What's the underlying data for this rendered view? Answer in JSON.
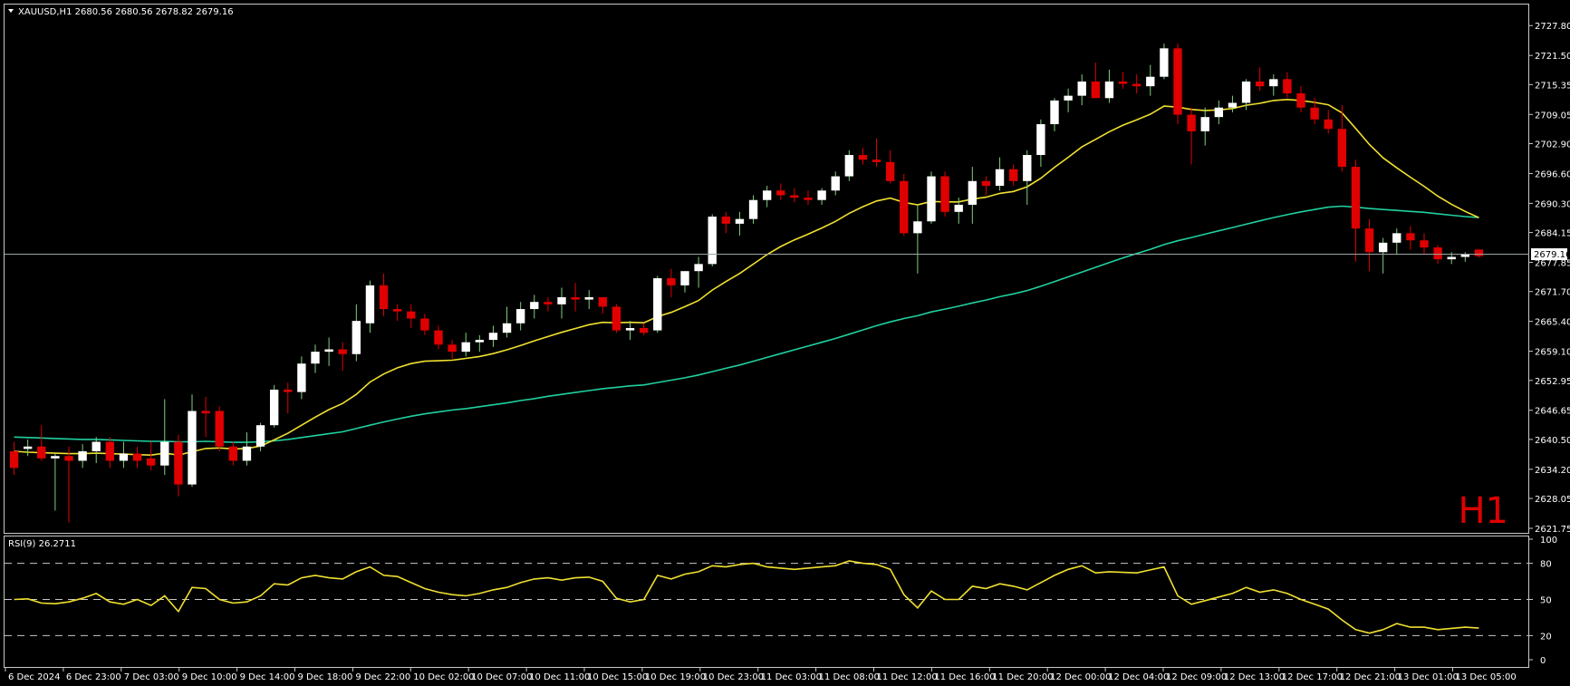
{
  "header": {
    "symbol_line": "XAUUSD,H1  2680.56 2680.56 2678.82 2679.16",
    "menu_icon": "triangle-down-icon"
  },
  "timeframe_watermark": "H1",
  "rsi_panel": {
    "label": "RSI(9) 26.2711",
    "levels": [
      "100",
      "80",
      "50",
      "20",
      "0"
    ]
  },
  "price_axis": {
    "labels": [
      "2727.80",
      "2721.50",
      "2715.35",
      "2709.05",
      "2702.90",
      "2696.60",
      "2690.30",
      "2684.15",
      "2677.85",
      "2671.70",
      "2665.40",
      "2659.10",
      "2652.95",
      "2646.65",
      "2640.50",
      "2634.20",
      "2628.05",
      "2621.75"
    ],
    "current_price_label": "2679.16"
  },
  "time_axis": {
    "labels": [
      "6 Dec 2024",
      "6 Dec 23:00",
      "7 Dec 03:00",
      "9 Dec 10:00",
      "9 Dec 14:00",
      "9 Dec 18:00",
      "9 Dec 22:00",
      "10 Dec 02:00",
      "10 Dec 07:00",
      "10 Dec 11:00",
      "10 Dec 15:00",
      "10 Dec 19:00",
      "10 Dec 23:00",
      "11 Dec 03:00",
      "11 Dec 08:00",
      "11 Dec 12:00",
      "11 Dec 16:00",
      "11 Dec 20:00",
      "12 Dec 00:00",
      "12 Dec 04:00",
      "12 Dec 09:00",
      "12 Dec 13:00",
      "12 Dec 17:00",
      "12 Dec 21:00",
      "13 Dec 01:00",
      "13 Dec 05:00"
    ]
  },
  "colors": {
    "background": "#000000",
    "bull_candle": "#ffffff",
    "bear_candle": "#e00000",
    "ma_fast": "#f0e030",
    "ma_slow": "#20d0a0",
    "rsi_line": "#f0e030",
    "frame": "#c8c8c8",
    "price_line": "#9aa4a4",
    "watermark": "#e00000"
  },
  "chart_data": {
    "type": "candlestick",
    "ylim": [
      2621.75,
      2730.9
    ],
    "candles": [
      [
        2638.0,
        2640.0,
        2633.0,
        2634.5
      ],
      [
        2638.5,
        2640.5,
        2637.0,
        2639.0
      ],
      [
        2639.0,
        2643.5,
        2636.0,
        2636.5
      ],
      [
        2636.5,
        2637.5,
        2625.5,
        2637.0
      ],
      [
        2637.0,
        2639.0,
        2623.0,
        2636.0
      ],
      [
        2636.0,
        2639.5,
        2634.5,
        2638.0
      ],
      [
        2638.0,
        2641.0,
        2635.5,
        2640.0
      ],
      [
        2640.0,
        2641.0,
        2634.5,
        2636.0
      ],
      [
        2636.0,
        2640.0,
        2634.5,
        2637.5
      ],
      [
        2637.5,
        2639.0,
        2634.5,
        2636.0
      ],
      [
        2636.5,
        2640.0,
        2634.0,
        2635.0
      ],
      [
        2635.0,
        2649.0,
        2633.0,
        2640.0
      ],
      [
        2640.0,
        2641.5,
        2628.5,
        2631.0
      ],
      [
        2631.0,
        2650.0,
        2630.5,
        2646.5
      ],
      [
        2646.5,
        2649.5,
        2641.0,
        2646.0
      ],
      [
        2646.5,
        2647.5,
        2638.0,
        2639.0
      ],
      [
        2639.0,
        2640.0,
        2635.0,
        2636.0
      ],
      [
        2636.0,
        2642.0,
        2635.0,
        2639.0
      ],
      [
        2639.0,
        2644.0,
        2638.0,
        2643.5
      ],
      [
        2643.5,
        2652.0,
        2643.0,
        2651.0
      ],
      [
        2651.0,
        2652.5,
        2646.0,
        2650.5
      ],
      [
        2650.5,
        2658.0,
        2649.0,
        2656.5
      ],
      [
        2656.5,
        2660.5,
        2654.5,
        2659.0
      ],
      [
        2659.0,
        2662.0,
        2656.0,
        2659.5
      ],
      [
        2659.5,
        2661.0,
        2655.0,
        2658.5
      ],
      [
        2658.5,
        2669.0,
        2657.0,
        2665.5
      ],
      [
        2665.0,
        2674.0,
        2663.0,
        2673.0
      ],
      [
        2673.0,
        2675.5,
        2666.5,
        2668.0
      ],
      [
        2668.0,
        2669.0,
        2665.5,
        2667.5
      ],
      [
        2667.5,
        2669.0,
        2664.0,
        2666.0
      ],
      [
        2666.0,
        2667.0,
        2662.5,
        2663.5
      ],
      [
        2663.5,
        2664.5,
        2659.5,
        2660.5
      ],
      [
        2660.5,
        2661.5,
        2657.5,
        2659.0
      ],
      [
        2659.0,
        2663.0,
        2658.0,
        2661.0
      ],
      [
        2661.0,
        2662.5,
        2659.0,
        2661.5
      ],
      [
        2661.5,
        2664.5,
        2660.0,
        2663.0
      ],
      [
        2663.0,
        2668.5,
        2662.0,
        2665.0
      ],
      [
        2665.0,
        2669.5,
        2663.5,
        2668.0
      ],
      [
        2668.0,
        2671.0,
        2666.0,
        2669.5
      ],
      [
        2669.5,
        2670.5,
        2667.5,
        2669.0
      ],
      [
        2669.0,
        2672.5,
        2666.0,
        2670.5
      ],
      [
        2670.5,
        2673.5,
        2667.5,
        2670.0
      ],
      [
        2670.0,
        2672.0,
        2668.0,
        2670.5
      ],
      [
        2670.5,
        2670.5,
        2667.0,
        2668.5
      ],
      [
        2668.5,
        2669.0,
        2663.0,
        2663.5
      ],
      [
        2663.5,
        2665.5,
        2661.5,
        2664.0
      ],
      [
        2664.0,
        2665.0,
        2662.5,
        2663.0
      ],
      [
        2663.5,
        2675.0,
        2663.0,
        2674.5
      ],
      [
        2674.5,
        2676.5,
        2670.5,
        2673.0
      ],
      [
        2673.0,
        2676.0,
        2671.5,
        2676.0
      ],
      [
        2676.0,
        2679.0,
        2672.5,
        2677.5
      ],
      [
        2677.5,
        2688.0,
        2677.0,
        2687.5
      ],
      [
        2687.5,
        2688.5,
        2684.0,
        2686.0
      ],
      [
        2686.0,
        2688.5,
        2683.5,
        2687.0
      ],
      [
        2687.0,
        2692.0,
        2686.0,
        2691.0
      ],
      [
        2691.0,
        2694.0,
        2689.5,
        2693.0
      ],
      [
        2693.0,
        2694.5,
        2691.0,
        2692.0
      ],
      [
        2692.0,
        2693.5,
        2690.5,
        2691.5
      ],
      [
        2691.5,
        2693.0,
        2690.0,
        2691.0
      ],
      [
        2691.0,
        2693.5,
        2690.0,
        2693.0
      ],
      [
        2693.0,
        2697.0,
        2692.0,
        2696.0
      ],
      [
        2696.0,
        2701.5,
        2695.0,
        2700.5
      ],
      [
        2700.5,
        2702.0,
        2698.5,
        2699.5
      ],
      [
        2699.5,
        2704.0,
        2698.0,
        2699.0
      ],
      [
        2699.0,
        2701.5,
        2694.5,
        2695.0
      ],
      [
        2695.0,
        2696.5,
        2683.5,
        2684.0
      ],
      [
        2684.0,
        2690.0,
        2675.5,
        2686.5
      ],
      [
        2686.5,
        2697.0,
        2686.0,
        2696.0
      ],
      [
        2696.0,
        2697.0,
        2687.5,
        2688.5
      ],
      [
        2688.5,
        2691.5,
        2686.0,
        2690.0
      ],
      [
        2690.0,
        2698.0,
        2686.0,
        2695.0
      ],
      [
        2695.0,
        2696.0,
        2692.0,
        2694.0
      ],
      [
        2694.0,
        2700.0,
        2693.0,
        2697.5
      ],
      [
        2697.5,
        2698.5,
        2694.0,
        2695.0
      ],
      [
        2695.0,
        2701.5,
        2690.0,
        2700.5
      ],
      [
        2700.5,
        2708.0,
        2698.0,
        2707.0
      ],
      [
        2707.0,
        2712.5,
        2705.5,
        2712.0
      ],
      [
        2712.0,
        2714.5,
        2709.5,
        2713.0
      ],
      [
        2713.0,
        2717.5,
        2711.0,
        2716.0
      ],
      [
        2716.0,
        2720.0,
        2713.5,
        2712.5
      ],
      [
        2712.5,
        2718.5,
        2711.5,
        2716.0
      ],
      [
        2716.0,
        2718.0,
        2714.5,
        2715.5
      ],
      [
        2715.5,
        2717.5,
        2713.5,
        2715.0
      ],
      [
        2715.0,
        2719.5,
        2713.0,
        2717.0
      ],
      [
        2717.0,
        2724.0,
        2716.5,
        2723.0
      ],
      [
        2723.0,
        2724.0,
        2707.0,
        2709.0
      ],
      [
        2709.0,
        2710.5,
        2698.5,
        2705.5
      ],
      [
        2705.5,
        2710.5,
        2702.5,
        2708.5
      ],
      [
        2708.5,
        2712.0,
        2707.0,
        2710.5
      ],
      [
        2710.5,
        2713.0,
        2709.5,
        2711.5
      ],
      [
        2711.5,
        2716.5,
        2710.0,
        2716.0
      ],
      [
        2716.0,
        2719.0,
        2714.0,
        2715.0
      ],
      [
        2715.0,
        2717.5,
        2713.0,
        2716.5
      ],
      [
        2716.5,
        2718.0,
        2712.5,
        2713.5
      ],
      [
        2713.5,
        2715.0,
        2709.5,
        2710.5
      ],
      [
        2710.5,
        2712.5,
        2707.0,
        2708.0
      ],
      [
        2708.0,
        2710.0,
        2705.0,
        2706.0
      ],
      [
        2706.0,
        2711.0,
        2697.0,
        2698.0
      ],
      [
        2698.0,
        2699.5,
        2678.0,
        2685.0
      ],
      [
        2685.0,
        2687.0,
        2676.0,
        2680.0
      ],
      [
        2680.0,
        2683.0,
        2675.5,
        2682.0
      ],
      [
        2682.0,
        2685.0,
        2679.5,
        2684.0
      ],
      [
        2684.0,
        2685.5,
        2680.5,
        2682.5
      ],
      [
        2682.5,
        2684.0,
        2679.5,
        2681.0
      ],
      [
        2681.0,
        2681.5,
        2677.5,
        2678.5
      ],
      [
        2678.5,
        2680.0,
        2677.5,
        2679.0
      ],
      [
        2679.0,
        2680.0,
        2678.0,
        2679.5
      ],
      [
        2680.56,
        2680.56,
        2678.82,
        2679.16
      ]
    ],
    "ma_fast": {
      "color": "#f0e030",
      "values": [
        2638.0,
        2637.8,
        2637.7,
        2637.6,
        2637.5,
        2637.5,
        2637.6,
        2637.5,
        2637.4,
        2637.3,
        2637.2,
        2637.6,
        2637.2,
        2637.9,
        2638.6,
        2638.7,
        2638.5,
        2638.6,
        2639.1,
        2640.4,
        2641.8,
        2643.5,
        2645.2,
        2646.8,
        2648.1,
        2650.0,
        2652.6,
        2654.3,
        2655.6,
        2656.5,
        2657.0,
        2657.1,
        2657.2,
        2657.6,
        2658.0,
        2658.6,
        2659.4,
        2660.3,
        2661.3,
        2662.2,
        2663.1,
        2663.9,
        2664.7,
        2665.2,
        2665.1,
        2665.2,
        2665.1,
        2666.4,
        2667.3,
        2668.5,
        2669.8,
        2672.0,
        2673.8,
        2675.5,
        2677.5,
        2679.5,
        2681.2,
        2682.6,
        2683.8,
        2685.1,
        2686.5,
        2688.2,
        2689.6,
        2690.8,
        2691.4,
        2690.5,
        2690.0,
        2690.7,
        2690.6,
        2690.6,
        2691.2,
        2691.6,
        2692.4,
        2692.8,
        2693.8,
        2695.6,
        2697.9,
        2700.0,
        2702.2,
        2703.8,
        2705.4,
        2706.8,
        2707.9,
        2709.1,
        2710.8,
        2710.6,
        2710.1,
        2709.9,
        2710.0,
        2710.3,
        2711.0,
        2711.4,
        2712.0,
        2712.2,
        2712.0,
        2711.6,
        2711.1,
        2709.4,
        2706.1,
        2702.7,
        2699.9,
        2697.8,
        2695.8,
        2693.9,
        2691.8,
        2690.1,
        2688.6,
        2687.3
      ]
    },
    "ma_slow": {
      "color": "#20d0a0",
      "values": [
        2641.0,
        2640.9,
        2640.8,
        2640.7,
        2640.6,
        2640.5,
        2640.5,
        2640.4,
        2640.3,
        2640.2,
        2640.1,
        2640.1,
        2640.0,
        2640.0,
        2640.1,
        2640.0,
        2639.9,
        2639.9,
        2640.0,
        2640.2,
        2640.5,
        2640.9,
        2641.3,
        2641.7,
        2642.1,
        2642.8,
        2643.5,
        2644.2,
        2644.8,
        2645.4,
        2645.9,
        2646.3,
        2646.7,
        2647.0,
        2647.4,
        2647.8,
        2648.2,
        2648.7,
        2649.1,
        2649.6,
        2650.0,
        2650.4,
        2650.8,
        2651.2,
        2651.5,
        2651.8,
        2652.0,
        2652.5,
        2653.0,
        2653.5,
        2654.1,
        2654.8,
        2655.5,
        2656.2,
        2657.0,
        2657.8,
        2658.6,
        2659.4,
        2660.2,
        2661.0,
        2661.8,
        2662.7,
        2663.6,
        2664.5,
        2665.3,
        2666.0,
        2666.6,
        2667.4,
        2668.0,
        2668.6,
        2669.3,
        2669.9,
        2670.6,
        2671.2,
        2671.9,
        2672.8,
        2673.8,
        2674.8,
        2675.8,
        2676.8,
        2677.8,
        2678.8,
        2679.7,
        2680.6,
        2681.6,
        2682.4,
        2683.1,
        2683.8,
        2684.5,
        2685.2,
        2685.9,
        2686.6,
        2687.3,
        2687.9,
        2688.5,
        2689.0,
        2689.5,
        2689.7,
        2689.5,
        2689.2,
        2689.0,
        2688.8,
        2688.6,
        2688.4,
        2688.1,
        2687.8,
        2687.5,
        2687.3
      ]
    },
    "rsi": {
      "color": "#f0e030",
      "ylim": [
        0,
        100
      ],
      "levels": [
        20,
        50,
        80
      ],
      "values": [
        50.0,
        50.5,
        47.0,
        46.5,
        48.0,
        51.0,
        55.0,
        48.0,
        46.0,
        50.0,
        45.0,
        53.0,
        40.0,
        60.0,
        59.0,
        50.0,
        47.0,
        48.0,
        53.0,
        63.0,
        62.0,
        68.0,
        70.0,
        68.0,
        67.0,
        73.0,
        77.0,
        70.0,
        69.0,
        64.0,
        59.0,
        56.0,
        54.0,
        53.0,
        55.0,
        58.0,
        60.0,
        64.0,
        67.0,
        68.0,
        66.0,
        68.0,
        68.5,
        65.0,
        51.0,
        48.0,
        50.0,
        70.0,
        67.0,
        71.0,
        73.0,
        78.0,
        77.0,
        79.0,
        80.0,
        77.0,
        76.0,
        75.0,
        76.0,
        77.0,
        78.0,
        82.0,
        80.0,
        79.0,
        75.0,
        54.0,
        43.0,
        57.0,
        50.0,
        50.0,
        61.0,
        59.0,
        63.0,
        61.0,
        58.0,
        64.0,
        70.0,
        75.0,
        78.0,
        72.0,
        73.0,
        72.5,
        72.0,
        74.5,
        77.0,
        53.0,
        46.0,
        49.0,
        52.0,
        55.0,
        60.0,
        56.0,
        58.0,
        55.0,
        50.0,
        46.0,
        42.0,
        33.0,
        25.0,
        22.0,
        25.0,
        30.0,
        27.0,
        27.0,
        25.0,
        26.0,
        27.0,
        26.27
      ]
    }
  }
}
